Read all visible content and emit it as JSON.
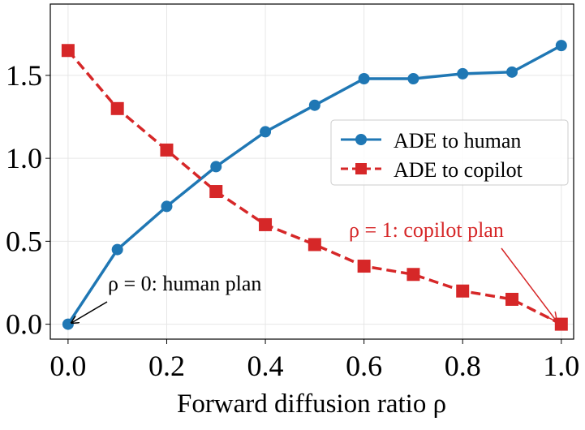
{
  "chart_data": {
    "type": "line",
    "title": "",
    "xlabel": "Forward diffusion ratio ρ",
    "ylabel": "",
    "xlim": [
      -0.036,
      1.025
    ],
    "ylim": [
      -0.09,
      1.93
    ],
    "grid": true,
    "legend_position": "center-right",
    "x_ticks": [
      "0.0",
      "0.2",
      "0.4",
      "0.6",
      "0.8",
      "1.0"
    ],
    "x_tick_values": [
      0,
      0.2,
      0.4,
      0.6,
      0.8,
      1.0
    ],
    "y_ticks": [
      "0.0",
      "0.5",
      "1.0",
      "1.5"
    ],
    "y_tick_values": [
      0,
      0.5,
      1.0,
      1.5
    ],
    "x": [
      0,
      0.1,
      0.2,
      0.3,
      0.4,
      0.5,
      0.6,
      0.7,
      0.8,
      0.9,
      1.0
    ],
    "series": [
      {
        "name": "ADE to human",
        "color": "#1f77b4",
        "marker": "circle",
        "linestyle": "solid",
        "values": [
          0,
          0.45,
          0.71,
          0.95,
          1.16,
          1.32,
          1.48,
          1.48,
          1.51,
          1.52,
          1.68
        ]
      },
      {
        "name": "ADE to copilot",
        "color": "#d62728",
        "marker": "square",
        "linestyle": "dashed",
        "values": [
          1.65,
          1.3,
          1.05,
          0.8,
          0.6,
          0.48,
          0.35,
          0.3,
          0.2,
          0.15,
          0
        ]
      }
    ],
    "annotations": [
      {
        "text": "ρ = 0: human plan",
        "color": "#000000",
        "points_to": [
          0,
          0
        ]
      },
      {
        "text": "ρ = 1: copilot plan",
        "color": "#d62728",
        "points_to": [
          1.0,
          0
        ]
      }
    ]
  }
}
